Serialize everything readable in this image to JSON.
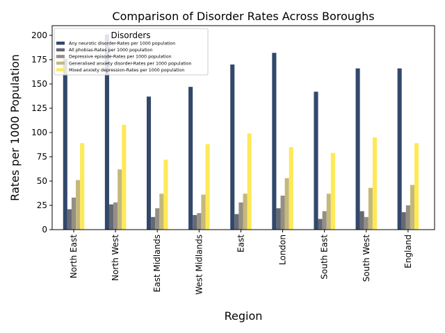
{
  "chart_data": {
    "type": "bar",
    "title": "Comparison of Disorder Rates Across Boroughs",
    "xlabel": "Region",
    "ylabel": "Rates per 1000 Population",
    "ylim": [
      0,
      210
    ],
    "yticks": [
      0,
      25,
      50,
      75,
      100,
      125,
      150,
      175,
      200
    ],
    "grid": false,
    "legend_title": "Disorders",
    "legend_position": "top-left",
    "categories": [
      "North East",
      "North West",
      "East Midlands",
      "West Midlands",
      "East",
      "London",
      "South East",
      "South West",
      "England"
    ],
    "series": [
      {
        "name": "Any neurotic disorder-Rates per 1000 population",
        "color": "#32486b",
        "values": [
          176,
          201,
          137,
          147,
          170,
          182,
          142,
          166,
          166
        ]
      },
      {
        "name": "All phobias-Rates per 1000 population",
        "color": "#666974",
        "values": [
          21,
          26,
          13,
          15,
          16,
          22,
          11,
          19,
          18
        ]
      },
      {
        "name": "Depressive episode-Rates per 1000 population",
        "color": "#948f82",
        "values": [
          33,
          28,
          22,
          17,
          28,
          35,
          19,
          13,
          25
        ]
      },
      {
        "name": "Generalised anxiety disorder-Rates per 1000 population",
        "color": "#c4b87c",
        "values": [
          51,
          62,
          37,
          36,
          37,
          53,
          37,
          43,
          46
        ]
      },
      {
        "name": "Mixed anxiety depression-Rates per 1000 population",
        "color": "#fee957",
        "values": [
          89,
          108,
          72,
          88,
          99,
          85,
          79,
          95,
          89
        ]
      }
    ]
  }
}
